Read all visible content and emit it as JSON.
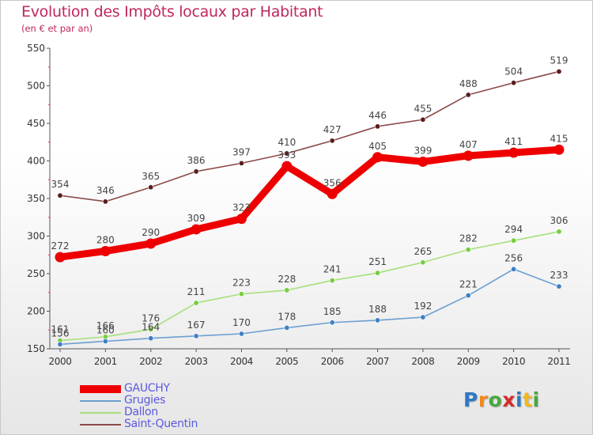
{
  "chart_data": {
    "type": "line",
    "title": "Evolution des Impôts locaux par Habitant",
    "subtitle": "(en € et par an)",
    "x": [
      "2000",
      "2001",
      "2002",
      "2003",
      "2004",
      "2005",
      "2006",
      "2007",
      "2008",
      "2009",
      "2010",
      "2011"
    ],
    "ylim": [
      150,
      550
    ],
    "yticks": [
      150,
      200,
      250,
      300,
      350,
      400,
      450,
      500,
      550
    ],
    "grid": false,
    "legend_position": "bottom-left",
    "series": [
      {
        "name": "GAUCHY",
        "color": "#ee0000",
        "emphasis": "thick",
        "values": [
          272,
          280,
          290,
          309,
          323,
          393,
          356,
          405,
          399,
          407,
          411,
          415
        ]
      },
      {
        "name": "Grugies",
        "color": "#6b9fd0",
        "marker_color": "#3f80c4",
        "values": [
          156,
          160,
          164,
          167,
          170,
          178,
          185,
          188,
          192,
          221,
          256,
          233
        ]
      },
      {
        "name": "Dallon",
        "color": "#a6e07c",
        "marker_color": "#78cc40",
        "values": [
          161,
          166,
          176,
          211,
          223,
          228,
          241,
          251,
          265,
          282,
          294,
          306
        ]
      },
      {
        "name": "Saint-Quentin",
        "color": "#8c4a4a",
        "marker_color": "#5a1e1e",
        "values": [
          354,
          346,
          365,
          386,
          397,
          410,
          427,
          446,
          455,
          488,
          504,
          519
        ]
      }
    ]
  },
  "brand": {
    "letters": [
      "P",
      "r",
      "o",
      "x",
      "i",
      "t",
      "i"
    ]
  }
}
